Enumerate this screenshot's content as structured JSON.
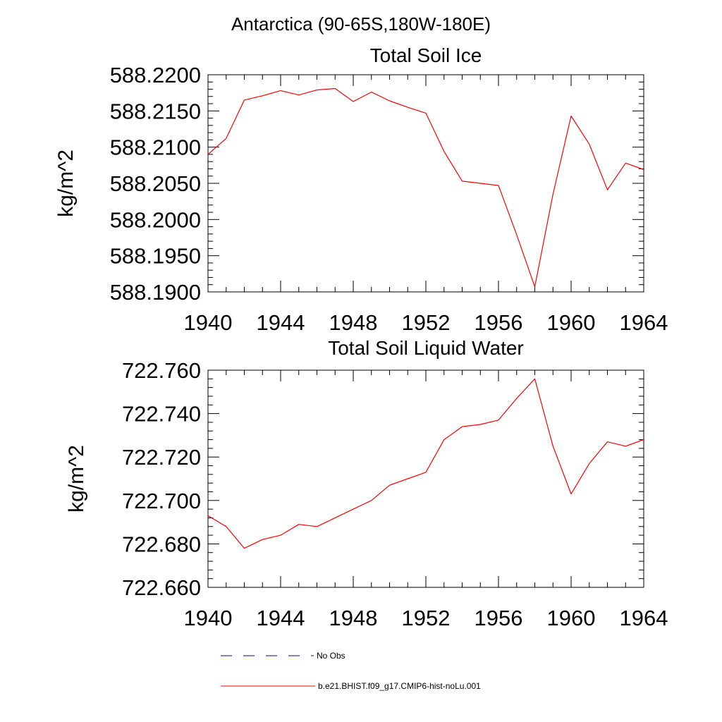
{
  "page": {
    "region_title": "Antarctica (90-65S,180W-180E)"
  },
  "colors": {
    "model_line": "#ff0000",
    "obs_line": "#0000aa",
    "axis": "#000000"
  },
  "chart_data": [
    {
      "type": "line",
      "title": "Total Soil Ice",
      "ylabel": "kg/m^2",
      "xlabel": "",
      "xlim": [
        1940,
        1964
      ],
      "ylim": [
        588.19,
        588.22
      ],
      "x_ticks": [
        1940,
        1944,
        1948,
        1952,
        1956,
        1960,
        1964
      ],
      "x_tick_labels": [
        "1940",
        "1944",
        "1948",
        "1952",
        "1956",
        "1960",
        "1964"
      ],
      "y_ticks": [
        588.19,
        588.195,
        588.2,
        588.205,
        588.21,
        588.215,
        588.22
      ],
      "y_tick_labels": [
        "588.1900",
        "588.1950",
        "588.2000",
        "588.2050",
        "588.2100",
        "588.2150",
        "588.2200"
      ],
      "grid": false,
      "series": [
        {
          "name": "b.e21.BHIST.f09_g17.CMIP6-hist-noLu.001",
          "x": [
            1940,
            1941,
            1942,
            1943,
            1944,
            1945,
            1946,
            1947,
            1948,
            1949,
            1950,
            1951,
            1952,
            1953,
            1954,
            1955,
            1956,
            1957,
            1958,
            1959,
            1960,
            1961,
            1962,
            1963,
            1964
          ],
          "y": [
            588.209,
            588.2112,
            588.2165,
            588.2171,
            588.2178,
            588.2172,
            588.2179,
            588.2181,
            588.2163,
            588.2176,
            588.2164,
            588.2155,
            588.2147,
            588.2094,
            588.2053,
            588.205,
            588.2047,
            588.1979,
            588.1907,
            588.2035,
            588.2143,
            588.2104,
            588.2041,
            588.2078,
            588.2069
          ]
        }
      ]
    },
    {
      "type": "line",
      "title": "Total Soil Liquid Water",
      "ylabel": "kg/m^2",
      "xlabel": "",
      "xlim": [
        1940,
        1964
      ],
      "ylim": [
        722.66,
        722.76
      ],
      "x_ticks": [
        1940,
        1944,
        1948,
        1952,
        1956,
        1960,
        1964
      ],
      "x_tick_labels": [
        "1940",
        "1944",
        "1948",
        "1952",
        "1956",
        "1960",
        "1964"
      ],
      "y_ticks": [
        722.66,
        722.68,
        722.7,
        722.72,
        722.74,
        722.76
      ],
      "y_tick_labels": [
        "722.660",
        "722.680",
        "722.700",
        "722.720",
        "722.740",
        "722.760"
      ],
      "grid": false,
      "series": [
        {
          "name": "b.e21.BHIST.f09_g17.CMIP6-hist-noLu.001",
          "x": [
            1940,
            1941,
            1942,
            1943,
            1944,
            1945,
            1946,
            1947,
            1948,
            1949,
            1950,
            1951,
            1952,
            1953,
            1954,
            1955,
            1956,
            1957,
            1958,
            1959,
            1960,
            1961,
            1962,
            1963,
            1964
          ],
          "y": [
            722.693,
            722.688,
            722.678,
            722.682,
            722.684,
            722.689,
            722.688,
            722.692,
            722.696,
            722.7,
            722.707,
            722.71,
            722.713,
            722.728,
            722.734,
            722.735,
            722.737,
            722.747,
            722.756,
            722.725,
            722.703,
            722.717,
            722.727,
            722.725,
            722.728
          ]
        }
      ]
    }
  ],
  "legend": {
    "placement": "bottom",
    "entries": [
      {
        "label": "No Obs",
        "style": "dashed",
        "color": "#0000aa"
      },
      {
        "label": "b.e21.BHIST.f09_g17.CMIP6-hist-noLu.001",
        "style": "solid",
        "color": "#ff0000"
      }
    ]
  }
}
